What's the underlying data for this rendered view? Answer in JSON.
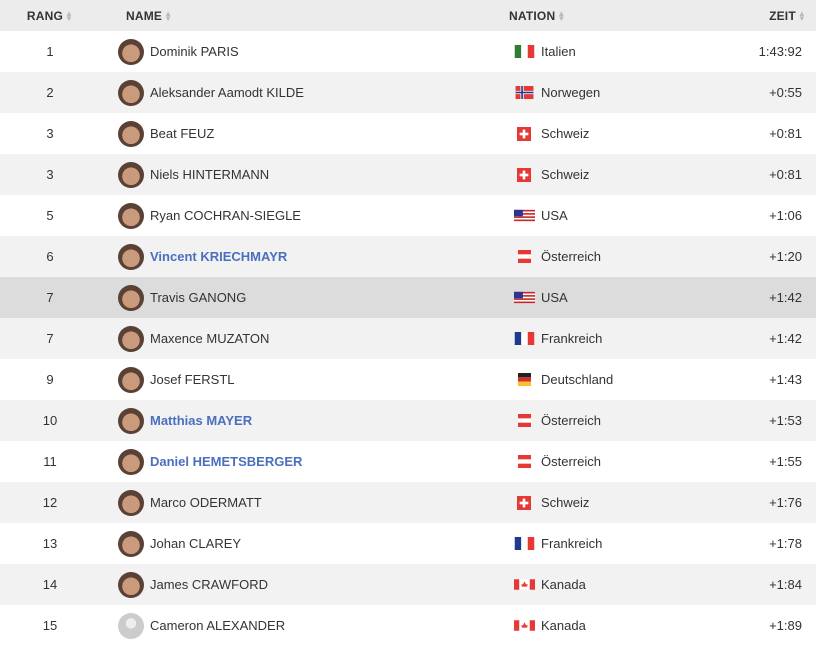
{
  "header": {
    "rank": "RANG",
    "name": "NAME",
    "nation": "NATION",
    "time": "ZEIT"
  },
  "rows": [
    {
      "rank": "1",
      "name": "Dominik PARIS",
      "nation": "Italien",
      "flag": "it",
      "time": "1:43:92",
      "highlight_name": false
    },
    {
      "rank": "2",
      "name": "Aleksander Aamodt KILDE",
      "nation": "Norwegen",
      "flag": "no",
      "time": "+0:55",
      "highlight_name": false
    },
    {
      "rank": "3",
      "name": "Beat FEUZ",
      "nation": "Schweiz",
      "flag": "ch",
      "time": "+0:81",
      "highlight_name": false
    },
    {
      "rank": "3",
      "name": "Niels HINTERMANN",
      "nation": "Schweiz",
      "flag": "ch",
      "time": "+0:81",
      "highlight_name": false
    },
    {
      "rank": "5",
      "name": "Ryan COCHRAN-SIEGLE",
      "nation": "USA",
      "flag": "us",
      "time": "+1:06",
      "highlight_name": false
    },
    {
      "rank": "6",
      "name": "Vincent KRIECHMAYR",
      "nation": "Österreich",
      "flag": "at",
      "time": "+1:20",
      "highlight_name": true
    },
    {
      "rank": "7",
      "name": "Travis GANONG",
      "nation": "USA",
      "flag": "us",
      "time": "+1:42",
      "highlight_name": false,
      "hover": true
    },
    {
      "rank": "7",
      "name": "Maxence MUZATON",
      "nation": "Frankreich",
      "flag": "fr",
      "time": "+1:42",
      "highlight_name": false
    },
    {
      "rank": "9",
      "name": "Josef FERSTL",
      "nation": "Deutschland",
      "flag": "de",
      "time": "+1:43",
      "highlight_name": false
    },
    {
      "rank": "10",
      "name": "Matthias MAYER",
      "nation": "Österreich",
      "flag": "at",
      "time": "+1:53",
      "highlight_name": true
    },
    {
      "rank": "11",
      "name": "Daniel HEMETSBERGER",
      "nation": "Österreich",
      "flag": "at",
      "time": "+1:55",
      "highlight_name": true
    },
    {
      "rank": "12",
      "name": "Marco ODERMATT",
      "nation": "Schweiz",
      "flag": "ch",
      "time": "+1:76",
      "highlight_name": false
    },
    {
      "rank": "13",
      "name": "Johan CLAREY",
      "nation": "Frankreich",
      "flag": "fr",
      "time": "+1:78",
      "highlight_name": false
    },
    {
      "rank": "14",
      "name": "James CRAWFORD",
      "nation": "Kanada",
      "flag": "ca",
      "time": "+1:84",
      "highlight_name": false
    },
    {
      "rank": "15",
      "name": "Cameron ALEXANDER",
      "nation": "Kanada",
      "flag": "ca",
      "time": "+1:89",
      "highlight_name": false,
      "no_photo": true
    }
  ],
  "colors": {
    "highlight_name": "#4a6fbf",
    "header_bg": "#ececec",
    "alt_row": "#f2f2f2",
    "hover_row": "#dcdcdc"
  }
}
